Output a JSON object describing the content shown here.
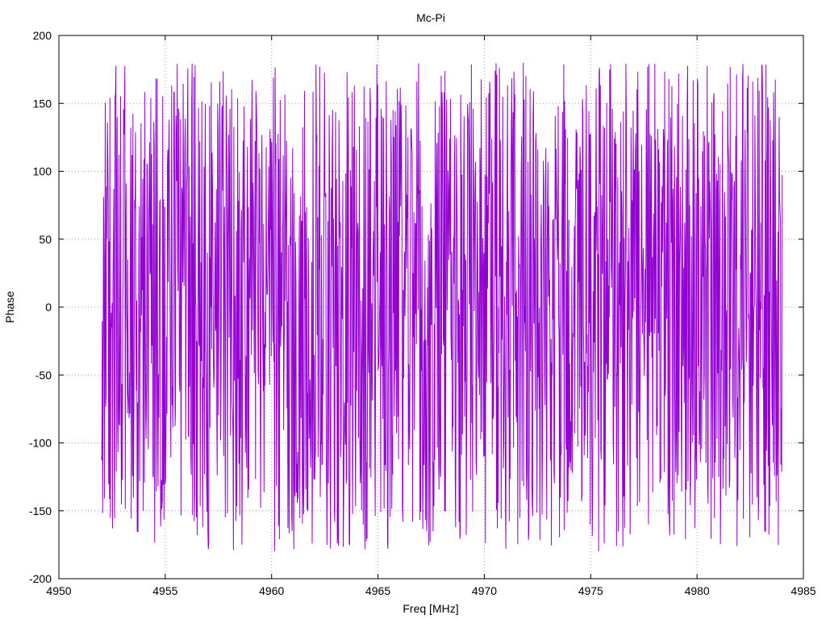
{
  "chart_data": {
    "type": "line",
    "title": "Mc-Pi",
    "xlabel": "Freq [MHz]",
    "ylabel": "Phase",
    "xlim": [
      4950,
      4985
    ],
    "ylim": [
      -200,
      200
    ],
    "xticks": [
      4950,
      4955,
      4960,
      4965,
      4970,
      4975,
      4980,
      4985
    ],
    "yticks": [
      -200,
      -150,
      -100,
      -50,
      0,
      50,
      100,
      150,
      200
    ],
    "grid": true,
    "legend": "none",
    "series": [
      {
        "color": "#9400d3",
        "x_start": 4952.0,
        "x_end": 4984.0,
        "y_min": -180,
        "y_max": 180,
        "description_of_pattern": ""
      }
    ]
  }
}
